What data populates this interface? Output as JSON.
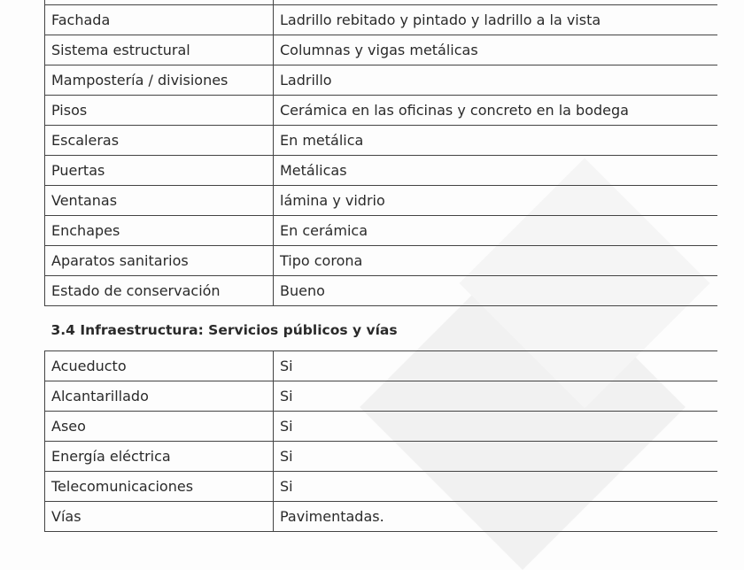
{
  "construction_rows": [
    {
      "label": "",
      "value": ""
    },
    {
      "label": "Fachada",
      "value": "Ladrillo rebitado y pintado y ladrillo a la vista"
    },
    {
      "label": "Sistema estructural",
      "value": "Columnas y vigas metálicas"
    },
    {
      "label": "Mampostería / divisiones",
      "value": "Ladrillo"
    },
    {
      "label": "Pisos",
      "value": "Cerámica en las oficinas y concreto en la bodega"
    },
    {
      "label": "Escaleras",
      "value": "En metálica"
    },
    {
      "label": "Puertas",
      "value": "Metálicas"
    },
    {
      "label": "Ventanas",
      "value": "lámina y vidrio"
    },
    {
      "label": "Enchapes",
      "value": "En cerámica"
    },
    {
      "label": "Aparatos sanitarios",
      "value": "Tipo corona"
    },
    {
      "label": "Estado de conservación",
      "value": "Bueno"
    }
  ],
  "section_title": "3.4  Infraestructura: Servicios públicos y vías",
  "infra_rows": [
    {
      "label": "Acueducto",
      "value": "Si"
    },
    {
      "label": "Alcantarillado",
      "value": "Si"
    },
    {
      "label": "Aseo",
      "value": "Si"
    },
    {
      "label": "Energía eléctrica",
      "value": "Si"
    },
    {
      "label": "Telecomunicaciones",
      "value": "Si"
    },
    {
      "label": "Vías",
      "value": "Pavimentadas."
    }
  ]
}
